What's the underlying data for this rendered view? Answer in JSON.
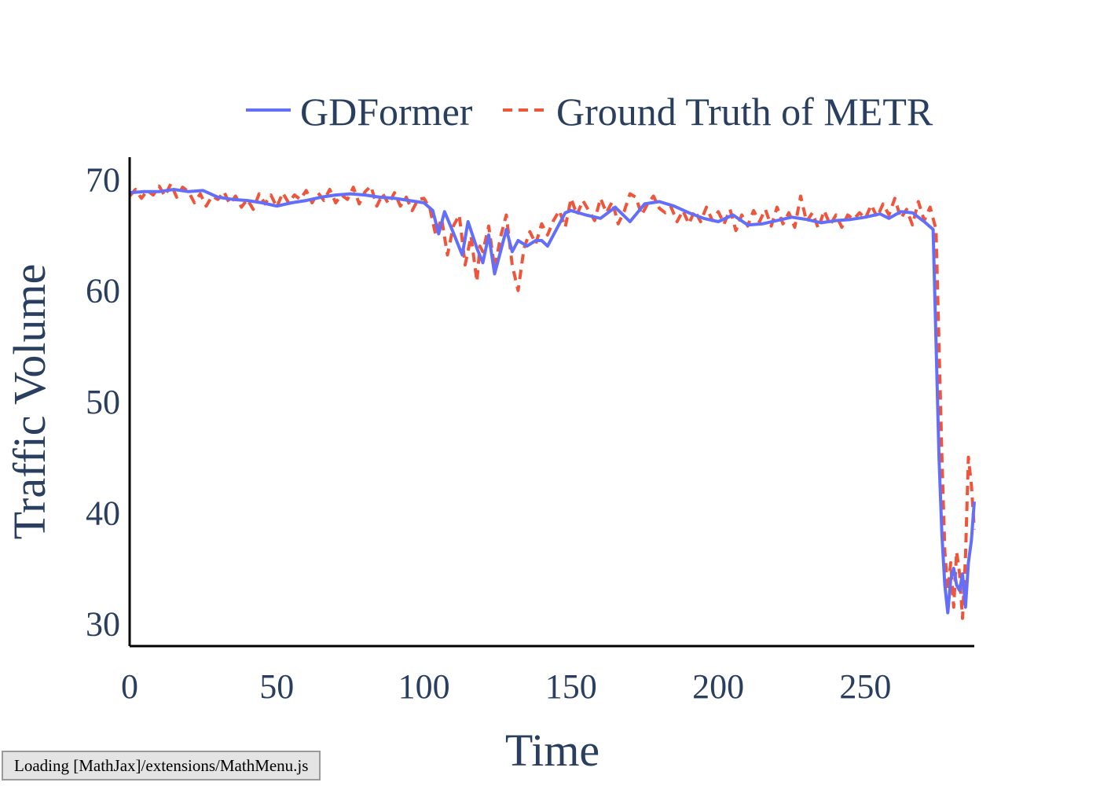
{
  "status": {
    "text": "Loading [MathJax]/extensions/MathMenu.js"
  },
  "colors": {
    "gdformer": "#636efa",
    "ground_truth": "#ef553b",
    "text": "#2a3f5f"
  },
  "chart_data": {
    "type": "line",
    "title": "",
    "xlabel": "Time",
    "ylabel": "Traffic Volume",
    "xlim": [
      0,
      287
    ],
    "ylim": [
      28,
      72
    ],
    "xticks": [
      "0",
      "50",
      "100",
      "150",
      "200",
      "250"
    ],
    "yticks": [
      "30",
      "40",
      "50",
      "60",
      "70"
    ],
    "grid": false,
    "legend": {
      "position": "top",
      "entries": [
        "GDFormer",
        "Ground Truth of METR"
      ]
    },
    "series": [
      {
        "name": "GDFormer",
        "style": "solid",
        "color": "#636efa",
        "x": [
          0,
          5,
          10,
          15,
          20,
          25,
          30,
          35,
          40,
          45,
          50,
          55,
          60,
          65,
          70,
          75,
          80,
          85,
          90,
          95,
          100,
          103,
          105,
          107,
          110,
          113,
          115,
          118,
          120,
          122,
          124,
          126,
          128,
          130,
          132,
          135,
          138,
          140,
          142,
          145,
          148,
          150,
          155,
          160,
          165,
          170,
          175,
          180,
          185,
          190,
          195,
          200,
          205,
          210,
          215,
          220,
          225,
          230,
          235,
          240,
          245,
          250,
          255,
          258,
          262,
          266,
          270,
          273,
          275,
          276,
          277,
          278,
          279,
          280,
          281,
          282,
          283,
          284,
          285,
          286,
          287
        ],
        "y": [
          68.8,
          68.9,
          68.9,
          69.1,
          68.9,
          69.0,
          68.4,
          68.2,
          68.1,
          67.9,
          67.6,
          67.9,
          68.1,
          68.4,
          68.6,
          68.7,
          68.6,
          68.4,
          68.3,
          68.1,
          67.9,
          67.2,
          65.1,
          67.1,
          65.2,
          63.2,
          66.2,
          63.8,
          62.5,
          65.0,
          61.5,
          63.5,
          65.5,
          63.5,
          64.5,
          64.0,
          64.5,
          64.5,
          64.0,
          65.5,
          67.0,
          67.2,
          66.8,
          66.5,
          67.5,
          66.2,
          67.8,
          68.0,
          67.6,
          67.0,
          66.5,
          66.2,
          66.8,
          65.9,
          66.0,
          66.3,
          66.6,
          66.4,
          66.1,
          66.3,
          66.4,
          66.6,
          66.9,
          66.5,
          67.1,
          67.0,
          66.2,
          65.5,
          45.0,
          38.0,
          33.5,
          31.0,
          34.0,
          35.0,
          33.5,
          33.0,
          34.5,
          31.5,
          35.5,
          37.5,
          41.0
        ]
      },
      {
        "name": "Ground Truth of METR",
        "style": "dash",
        "color": "#ef553b",
        "x": [
          0,
          2,
          4,
          6,
          8,
          10,
          12,
          14,
          16,
          18,
          20,
          22,
          24,
          26,
          28,
          30,
          32,
          34,
          36,
          38,
          40,
          42,
          44,
          46,
          48,
          50,
          52,
          54,
          56,
          58,
          60,
          62,
          64,
          66,
          68,
          70,
          72,
          74,
          76,
          78,
          80,
          82,
          84,
          86,
          88,
          90,
          92,
          94,
          96,
          98,
          100,
          102,
          104,
          106,
          108,
          110,
          112,
          114,
          116,
          118,
          119,
          120,
          122,
          124,
          126,
          128,
          130,
          132,
          134,
          136,
          138,
          140,
          142,
          144,
          146,
          148,
          150,
          152,
          154,
          156,
          158,
          160,
          162,
          164,
          166,
          168,
          170,
          172,
          174,
          176,
          178,
          180,
          182,
          184,
          186,
          188,
          190,
          192,
          194,
          196,
          198,
          200,
          202,
          204,
          206,
          208,
          210,
          212,
          214,
          216,
          218,
          220,
          222,
          224,
          226,
          228,
          230,
          232,
          234,
          236,
          238,
          240,
          242,
          244,
          246,
          248,
          250,
          252,
          254,
          256,
          258,
          260,
          262,
          264,
          266,
          268,
          270,
          272,
          274,
          276,
          277,
          278,
          279,
          280,
          281,
          282,
          283,
          284,
          285,
          286,
          287
        ],
        "y": [
          68.5,
          69.1,
          68.3,
          69.0,
          68.6,
          69.4,
          68.5,
          69.6,
          68.4,
          69.3,
          68.9,
          67.9,
          68.7,
          67.6,
          68.5,
          68.2,
          68.9,
          67.8,
          68.5,
          67.5,
          68.2,
          67.3,
          68.7,
          67.8,
          68.6,
          67.5,
          68.8,
          67.9,
          68.6,
          68.2,
          69.0,
          67.9,
          68.8,
          68.1,
          69.1,
          67.9,
          68.6,
          68.2,
          69.3,
          67.8,
          68.9,
          69.4,
          67.6,
          68.7,
          67.8,
          68.8,
          67.6,
          68.4,
          67.2,
          68.2,
          68.3,
          67.4,
          65.0,
          66.5,
          63.2,
          65.8,
          66.8,
          62.3,
          64.9,
          60.8,
          64.0,
          63.5,
          65.8,
          62.0,
          64.8,
          66.8,
          62.3,
          60.0,
          63.8,
          65.3,
          64.2,
          66.0,
          65.0,
          66.3,
          67.2,
          65.7,
          68.3,
          66.8,
          68.1,
          67.2,
          66.3,
          68.3,
          67.0,
          68.0,
          66.0,
          67.1,
          68.7,
          68.4,
          66.8,
          67.8,
          68.5,
          67.4,
          67.0,
          67.5,
          66.2,
          67.2,
          66.0,
          67.2,
          66.2,
          67.5,
          66.3,
          67.1,
          66.0,
          67.3,
          65.4,
          66.8,
          65.8,
          67.2,
          66.2,
          67.3,
          65.8,
          67.5,
          66.0,
          67.0,
          65.7,
          68.5,
          66.2,
          67.0,
          65.6,
          67.2,
          65.9,
          66.8,
          65.7,
          66.8,
          66.4,
          67.0,
          66.5,
          67.7,
          66.6,
          67.8,
          66.8,
          68.3,
          66.5,
          67.3,
          65.9,
          68.0,
          66.3,
          67.5,
          65.5,
          45.0,
          36.5,
          33.0,
          35.5,
          31.5,
          36.5,
          34.5,
          30.5,
          36.0,
          45.0,
          42.5,
          38.5
        ]
      }
    ]
  }
}
